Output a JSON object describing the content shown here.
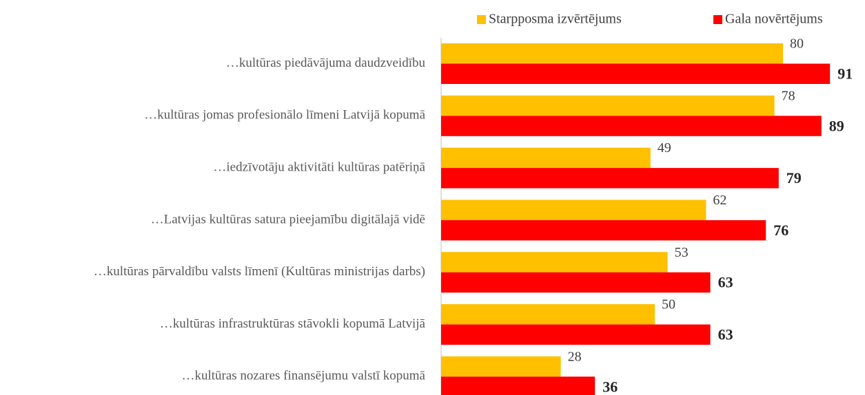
{
  "chart_data": {
    "type": "bar",
    "orientation": "horizontal",
    "categories": [
      "…kultūras piedāvājuma daudzveidību",
      "…kultūras jomas profesionālo līmeni Latvijā kopumā",
      "…iedzīvotāju aktivitāti kultūras patēriņā",
      "…Latvijas kultūras satura pieejamību digitālajā vidē",
      "…kultūras pārvaldību valsts līmenī (Kultūras ministrijas darbs)",
      "…kultūras infrastruktūras stāvokli kopumā Latvijā",
      "…kultūras nozares finansējumu valstī kopumā"
    ],
    "series": [
      {
        "name": "Starpposma izvērtējums",
        "color": "#ffc000",
        "values": [
          80,
          78,
          49,
          62,
          53,
          50,
          28
        ]
      },
      {
        "name": "Gala novērtējums",
        "color": "#ff0000",
        "values": [
          91,
          89,
          79,
          76,
          63,
          63,
          36
        ]
      }
    ],
    "xlim": [
      0,
      95
    ],
    "legend": "top-right"
  }
}
